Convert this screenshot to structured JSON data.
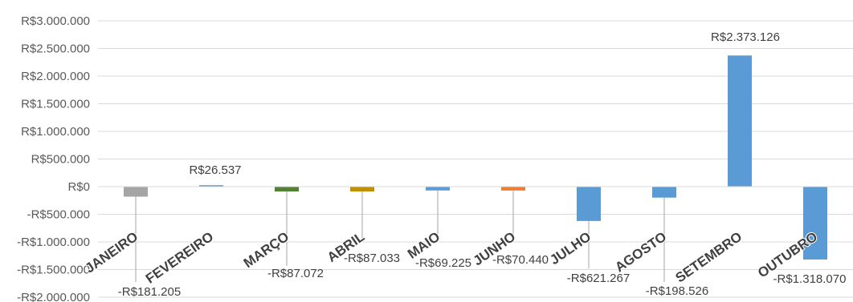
{
  "chart_data": {
    "type": "bar",
    "categories": [
      "JANEIRO",
      "FEVEREIRO",
      "MARÇO",
      "ABRIL",
      "MAIO",
      "JUNHO",
      "JULHO",
      "AGOSTO",
      "SETEMBRO",
      "OUTUBRO"
    ],
    "values": [
      -181205,
      26537,
      -87072,
      -87033,
      -69225,
      -70440,
      -621267,
      -198526,
      2373126,
      -1318070
    ],
    "data_labels": [
      "-R$181.205",
      "R$26.537",
      "-R$87.072",
      "-R$87.033",
      "-R$69.225",
      "-R$70.440",
      "-R$621.267",
      "-R$198.526",
      "R$2.373.126",
      "-R$1.318.070"
    ],
    "bar_colors": [
      "#a5a5a5",
      "#5b9bd5",
      "#548235",
      "#bf9000",
      "#5b9bd5",
      "#ed7d31",
      "#5b9bd5",
      "#5b9bd5",
      "#5b9bd5",
      "#5b9bd5"
    ],
    "y_ticks": [
      3000000,
      2500000,
      2000000,
      1500000,
      1000000,
      500000,
      0,
      -500000,
      -1000000,
      -1500000,
      -2000000
    ],
    "y_tick_labels": [
      "R$3.000.000",
      "R$2.500.000",
      "R$2.000.000",
      "R$1.500.000",
      "R$1.000.000",
      "R$500.000",
      "R$0",
      "-R$500.000",
      "-R$1.000.000",
      "-R$1.500.000",
      "-R$2.000.000"
    ],
    "ylim": [
      -2000000,
      3000000
    ],
    "grid": true,
    "legend": "none",
    "title": "",
    "xlabel": "",
    "ylabel": ""
  }
}
